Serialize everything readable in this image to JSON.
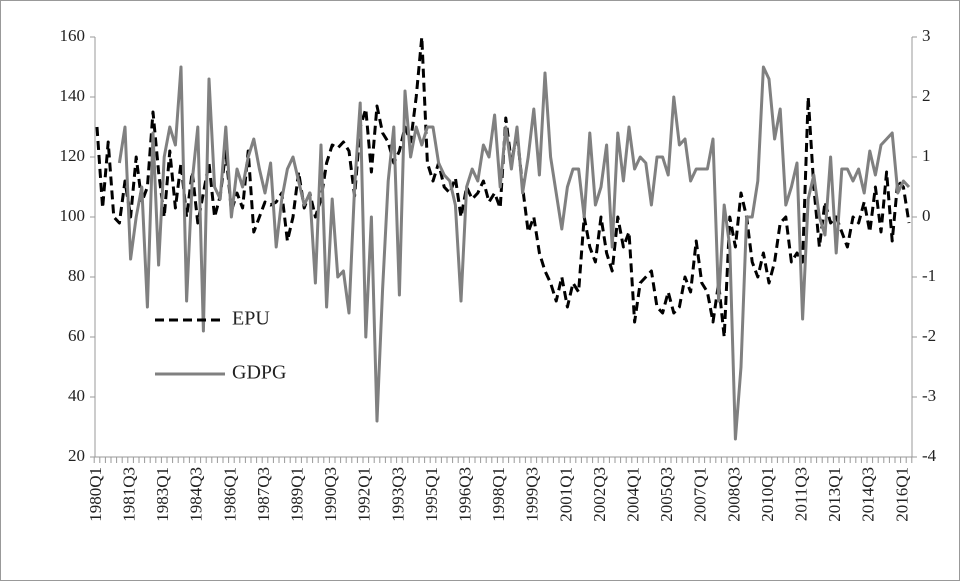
{
  "chart_data": {
    "type": "line",
    "categories": [
      "1980Q1",
      null,
      null,
      null,
      null,
      null,
      "1981Q3",
      null,
      null,
      null,
      null,
      null,
      "1983Q1",
      null,
      null,
      null,
      null,
      null,
      "1984Q3",
      null,
      null,
      null,
      null,
      null,
      "1986Q1",
      null,
      null,
      null,
      null,
      null,
      "1987Q3",
      null,
      null,
      null,
      null,
      null,
      "1989Q1",
      null,
      null,
      null,
      null,
      null,
      "1990Q3",
      null,
      null,
      null,
      null,
      null,
      "1992Q1",
      null,
      null,
      null,
      null,
      null,
      "1993Q3",
      null,
      null,
      null,
      null,
      null,
      "1995Q1",
      null,
      null,
      null,
      null,
      null,
      "1996Q3",
      null,
      null,
      null,
      null,
      null,
      "1998Q1",
      null,
      null,
      null,
      null,
      null,
      "1999Q3",
      null,
      null,
      null,
      null,
      null,
      "2001Q1",
      null,
      null,
      null,
      null,
      null,
      "2002Q3",
      null,
      null,
      null,
      null,
      null,
      "2004Q1",
      null,
      null,
      null,
      null,
      null,
      "2005Q3",
      null,
      null,
      null,
      null,
      null,
      "2007Q1",
      null,
      null,
      null,
      null,
      null,
      "2008Q3",
      null,
      null,
      null,
      null,
      null,
      "2010Q1",
      null,
      null,
      null,
      null,
      null,
      "2011Q3",
      null,
      null,
      null,
      null,
      null,
      "2013Q1",
      null,
      null,
      null,
      null,
      null,
      "2014Q3",
      null,
      null,
      null,
      null,
      null,
      "2016Q1",
      null
    ],
    "series": [
      {
        "name": "EPU",
        "color": "#000000",
        "dash": true,
        "values": [
          130,
          103,
          125,
          100,
          98,
          112,
          100,
          120,
          105,
          110,
          135,
          115,
          100,
          122,
          103,
          118,
          100,
          115,
          98,
          108,
          118,
          100,
          107,
          122,
          102,
          108,
          103,
          122,
          95,
          100,
          105,
          104,
          105,
          108,
          92,
          100,
          115,
          103,
          108,
          100,
          106,
          118,
          124,
          123,
          125,
          122,
          107,
          130,
          136,
          115,
          137,
          128,
          125,
          118,
          122,
          130,
          125,
          140,
          160,
          118,
          112,
          118,
          110,
          108,
          113,
          100,
          110,
          106,
          108,
          112,
          105,
          108,
          103,
          133,
          118,
          128,
          110,
          95,
          100,
          88,
          82,
          78,
          72,
          80,
          70,
          78,
          75,
          100,
          90,
          85,
          100,
          88,
          82,
          100,
          90,
          95,
          65,
          78,
          80,
          82,
          70,
          68,
          75,
          68,
          70,
          80,
          75,
          92,
          78,
          75,
          65,
          78,
          60,
          100,
          90,
          108,
          100,
          85,
          80,
          88,
          78,
          85,
          98,
          100,
          85,
          88,
          85,
          140,
          110,
          90,
          105,
          98,
          100,
          95,
          90,
          100,
          98,
          105,
          95,
          110,
          95,
          115,
          92,
          112,
          110,
          98
        ]
      },
      {
        "name": "GDPG",
        "color": "#808080",
        "dash": false,
        "axis": "y2",
        "values": [
          null,
          null,
          null,
          null,
          0.9,
          1.5,
          -0.7,
          0.0,
          0.5,
          -1.5,
          1.4,
          -0.8,
          1.0,
          1.5,
          1.2,
          2.5,
          -1.4,
          0.6,
          1.5,
          -1.9,
          2.3,
          0.5,
          0.3,
          1.5,
          0.0,
          0.8,
          0.5,
          1.0,
          1.3,
          0.8,
          0.4,
          0.9,
          -0.5,
          0.3,
          0.8,
          1.0,
          0.6,
          0.2,
          0.4,
          -1.1,
          1.2,
          -1.5,
          0.3,
          -1.0,
          -0.9,
          -1.6,
          0.5,
          1.9,
          -2.0,
          0.0,
          -3.4,
          -1.2,
          0.6,
          1.5,
          -1.3,
          2.1,
          1.0,
          1.5,
          1.2,
          1.5,
          1.5,
          0.9,
          0.7,
          0.6,
          0.2,
          -1.4,
          0.5,
          0.8,
          0.6,
          1.2,
          1.0,
          1.7,
          0.5,
          1.5,
          0.8,
          1.5,
          0.4,
          1.0,
          1.8,
          0.7,
          2.4,
          1.0,
          0.4,
          -0.2,
          0.5,
          0.8,
          0.8,
          0.0,
          1.4,
          0.2,
          0.5,
          1.2,
          -0.5,
          1.4,
          0.6,
          1.5,
          0.8,
          1.0,
          0.9,
          0.2,
          1.0,
          1.0,
          0.7,
          2.0,
          1.2,
          1.3,
          0.6,
          0.8,
          0.8,
          0.8,
          1.3,
          -1.4,
          0.2,
          -0.5,
          -3.7,
          -2.5,
          0.0,
          0.0,
          0.6,
          2.5,
          2.3,
          1.3,
          1.8,
          0.2,
          0.5,
          0.9,
          -1.7,
          0.3,
          0.7,
          0.0,
          -0.3,
          1.0,
          -0.6,
          0.8,
          0.8,
          0.6,
          0.8,
          0.4,
          1.1,
          0.7,
          1.2,
          1.3,
          1.4,
          0.4,
          0.6,
          0.5
        ]
      }
    ],
    "ylim": [
      20,
      160
    ],
    "yticks": [
      20,
      40,
      60,
      80,
      100,
      120,
      140,
      160
    ],
    "y2lim": [
      -4,
      3
    ],
    "y2ticks": [
      -4,
      -3,
      -2,
      -1,
      0,
      1,
      2,
      3
    ],
    "grid": false
  }
}
